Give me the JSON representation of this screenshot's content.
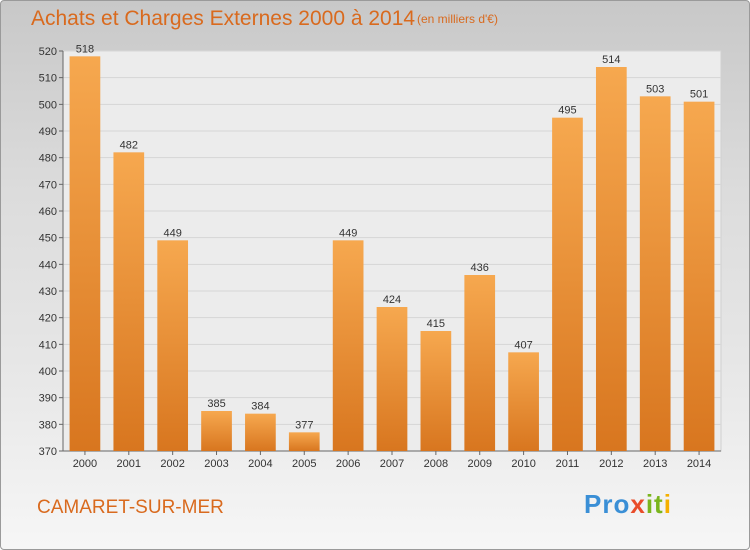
{
  "title": "Achats et Charges Externes 2000 à 2014",
  "subtitle": "(en milliers d'€)",
  "location": "CAMARET-SUR-MER",
  "logo": {
    "p1": "Pro",
    "p2": "x",
    "p3": "it",
    "p4": "i"
  },
  "colors": {
    "bar_light": "#f6a84f",
    "bar_dark": "#d8761f",
    "accent": "#d96a1e"
  },
  "chart_data": {
    "type": "bar",
    "categories": [
      "2000",
      "2001",
      "2002",
      "2003",
      "2004",
      "2005",
      "2006",
      "2007",
      "2008",
      "2009",
      "2010",
      "2011",
      "2012",
      "2013",
      "2014"
    ],
    "values": [
      518,
      482,
      449,
      385,
      384,
      377,
      449,
      424,
      415,
      436,
      407,
      495,
      514,
      503,
      501
    ],
    "ylim": [
      370,
      520
    ],
    "yticks": [
      370,
      380,
      390,
      400,
      410,
      420,
      430,
      440,
      450,
      460,
      470,
      480,
      490,
      500,
      510,
      520
    ],
    "grid": true,
    "data_labels": true
  }
}
